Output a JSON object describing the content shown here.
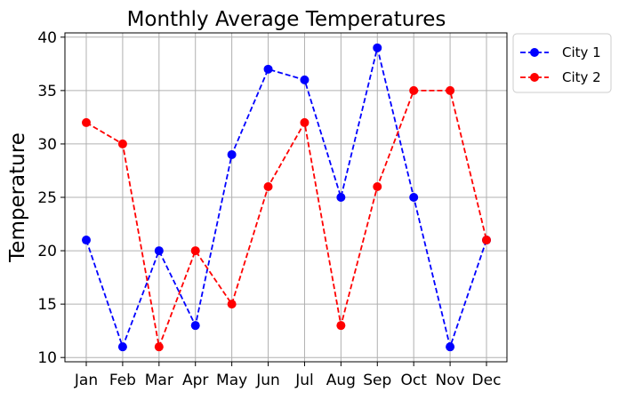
{
  "chart_data": {
    "type": "line",
    "title": "Monthly Average Temperatures",
    "xlabel": "",
    "ylabel": "Temperature",
    "categories": [
      "Jan",
      "Feb",
      "Mar",
      "Apr",
      "May",
      "Jun",
      "Jul",
      "Aug",
      "Sep",
      "Oct",
      "Nov",
      "Dec"
    ],
    "ylim": [
      9.6,
      40.4
    ],
    "yticks": [
      10,
      15,
      20,
      25,
      30,
      35,
      40
    ],
    "grid": true,
    "legend_position": "outside-top-right",
    "series": [
      {
        "name": "City 1",
        "color": "#0000ff",
        "line_style": "dashed",
        "marker": "circle",
        "values": [
          21,
          11,
          20,
          13,
          29,
          37,
          36,
          25,
          39,
          25,
          11,
          21
        ]
      },
      {
        "name": "City 2",
        "color": "#ff0000",
        "line_style": "dashed",
        "marker": "circle",
        "values": [
          32,
          30,
          11,
          20,
          15,
          26,
          32,
          13,
          26,
          35,
          35,
          21
        ]
      }
    ]
  }
}
